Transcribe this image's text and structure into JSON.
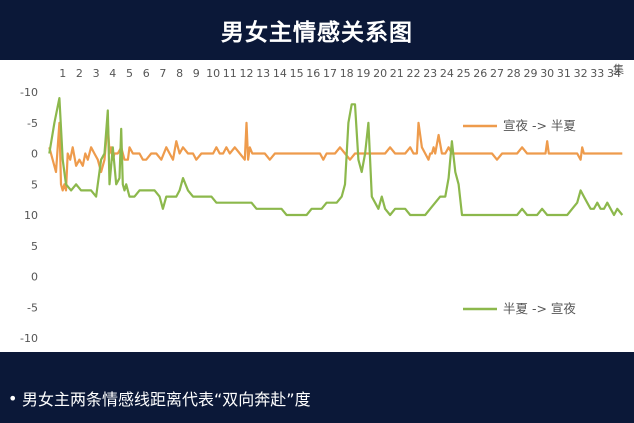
{
  "title": "男女主情感关系图",
  "footer": {
    "bullet": "•",
    "text": "男女主两条情感线距离代表“双向奔赴”度"
  },
  "colors": {
    "background": "#0b1838",
    "panel": "#ffffff",
    "orange": "#ee9b4c",
    "green": "#8cb84c",
    "grid": "#d9d9d9"
  },
  "chart_data": {
    "type": "line",
    "x_unit_label": "集",
    "x_ticks": [
      "1",
      "2",
      "3",
      "4",
      "5",
      "6",
      "7",
      "8",
      "9",
      "10",
      "11",
      "12",
      "13",
      "14",
      "15",
      "16",
      "17",
      "18",
      "19",
      "20",
      "21",
      "22",
      "23",
      "24",
      "25",
      "26",
      "27",
      "28",
      "29",
      "30",
      "31",
      "32",
      "33",
      "34"
    ],
    "y_ticks": [
      "-10",
      "-5",
      "0",
      "5",
      "10",
      "5",
      "0",
      "-5",
      "-10"
    ],
    "y_tick_values": [
      -20,
      -15,
      -10,
      -5,
      0,
      5,
      10,
      15,
      20
    ],
    "ylim": [
      -20,
      20
    ],
    "legend_placement": "inline-right",
    "grid": false,
    "series": [
      {
        "name": "宣夜 -> 半夏",
        "color": "#ee9b4c",
        "x": [
          0.2,
          0.6,
          0.8,
          0.9,
          1.0,
          1.1,
          1.2,
          1.3,
          1.45,
          1.6,
          1.8,
          2.0,
          2.2,
          2.35,
          2.5,
          2.7,
          2.9,
          3.1,
          3.3,
          3.5,
          3.6,
          3.7,
          3.8,
          3.9,
          4.0,
          4.1,
          4.3,
          4.5,
          4.7,
          4.9,
          5.0,
          5.2,
          5.4,
          5.6,
          5.8,
          6.0,
          6.3,
          6.6,
          6.9,
          7.2,
          7.4,
          7.6,
          7.8,
          8.0,
          8.2,
          8.5,
          8.8,
          9.0,
          9.3,
          9.6,
          9.8,
          10.0,
          10.2,
          10.4,
          10.6,
          10.8,
          11.0,
          11.3,
          11.6,
          11.9,
          12.0,
          12.1,
          12.2,
          12.35,
          12.5,
          12.8,
          13.1,
          13.4,
          13.7,
          14.0,
          14.3,
          14.6,
          14.9,
          15.2,
          15.5,
          15.8,
          16.0,
          16.2,
          16.4,
          16.6,
          16.8,
          17.0,
          17.3,
          17.6,
          17.9,
          18.2,
          18.5,
          18.8,
          19.1,
          19.4,
          19.7,
          20.0,
          20.3,
          20.6,
          20.9,
          21.2,
          21.5,
          21.8,
          22.0,
          22.1,
          22.2,
          22.3,
          22.5,
          22.7,
          22.9,
          23.0,
          23.1,
          23.2,
          23.3,
          23.5,
          23.7,
          23.9,
          24.1,
          24.3,
          24.5,
          24.7,
          24.9,
          25.2,
          25.5,
          25.8,
          26.1,
          26.4,
          26.7,
          27.0,
          27.3,
          27.6,
          27.9,
          28.2,
          28.5,
          28.8,
          29.1,
          29.4,
          29.6,
          29.8,
          29.9,
          30.0,
          30.1,
          30.2,
          30.5,
          30.8,
          31.1,
          31.4,
          31.6,
          31.8,
          32.0,
          32.1,
          32.2,
          32.3,
          32.5,
          32.7,
          32.9,
          33.1,
          33.3,
          33.5,
          33.7,
          33.9,
          34.1,
          34.3,
          34.5
        ],
        "y": [
          -11,
          -7,
          -15,
          -5,
          -4,
          -5,
          -4,
          -10,
          -9,
          -11,
          -8,
          -9,
          -8,
          -10,
          -9,
          -11,
          -10,
          -9,
          -7,
          -9,
          -12,
          -15,
          -10,
          -11,
          -9,
          -10,
          -10,
          -11,
          -9,
          -9,
          -11,
          -10,
          -10,
          -10,
          -9,
          -9,
          -10,
          -10,
          -9,
          -11,
          -10,
          -9,
          -12,
          -10,
          -11,
          -10,
          -10,
          -9,
          -10,
          -10,
          -10,
          -10,
          -11,
          -10,
          -10,
          -11,
          -10,
          -11,
          -10,
          -9,
          -15,
          -9,
          -11,
          -10,
          -10,
          -10,
          -10,
          -9,
          -10,
          -10,
          -10,
          -10,
          -10,
          -10,
          -10,
          -10,
          -10,
          -10,
          -10,
          -9,
          -10,
          -10,
          -10,
          -11,
          -10,
          -9,
          -10,
          -10,
          -10,
          -10,
          -10,
          -10,
          -10,
          -11,
          -10,
          -10,
          -10,
          -11,
          -10,
          -10,
          -10,
          -15,
          -11,
          -10,
          -9,
          -10,
          -10,
          -11,
          -10,
          -13,
          -10,
          -10,
          -11,
          -10,
          -10,
          -10,
          -10,
          -10,
          -10,
          -10,
          -10,
          -10,
          -10,
          -9,
          -10,
          -10,
          -10,
          -10,
          -11,
          -10,
          -10,
          -10,
          -10,
          -10,
          -10,
          -12,
          -10,
          -10,
          -10,
          -10,
          -10,
          -10,
          -10,
          -10,
          -9,
          -11,
          -10,
          -10,
          -10,
          -10,
          -10,
          -10,
          -10,
          -10,
          -10,
          -10,
          -10,
          -10,
          -10
        ]
      },
      {
        "name": "半夏 -> 宣夜",
        "color": "#8cb84c",
        "x": [
          0.2,
          0.5,
          0.8,
          1.0,
          1.2,
          1.5,
          1.8,
          2.1,
          2.4,
          2.7,
          3.0,
          3.3,
          3.5,
          3.7,
          3.8,
          4.0,
          4.2,
          4.4,
          4.5,
          4.6,
          4.7,
          4.8,
          5.0,
          5.3,
          5.6,
          5.9,
          6.2,
          6.5,
          6.8,
          7.0,
          7.2,
          7.5,
          7.8,
          8.0,
          8.2,
          8.5,
          8.8,
          9.0,
          9.3,
          9.6,
          9.9,
          10.2,
          10.5,
          10.8,
          11.1,
          11.4,
          11.7,
          12.0,
          12.3,
          12.6,
          12.9,
          13.2,
          13.5,
          13.8,
          14.1,
          14.4,
          14.7,
          15.0,
          15.3,
          15.6,
          15.9,
          16.2,
          16.5,
          16.8,
          17.1,
          17.4,
          17.7,
          17.9,
          18.1,
          18.3,
          18.5,
          18.7,
          18.9,
          19.1,
          19.3,
          19.5,
          19.7,
          19.9,
          20.1,
          20.3,
          20.6,
          20.9,
          21.2,
          21.5,
          21.8,
          22.1,
          22.4,
          22.7,
          23.0,
          23.3,
          23.6,
          23.9,
          24.1,
          24.3,
          24.5,
          24.7,
          24.9,
          25.2,
          25.5,
          25.8,
          26.1,
          26.4,
          26.7,
          27.0,
          27.3,
          27.6,
          27.9,
          28.2,
          28.5,
          28.8,
          29.1,
          29.4,
          29.7,
          30.0,
          30.3,
          30.6,
          30.9,
          31.2,
          31.5,
          31.8,
          32.0,
          32.2,
          32.4,
          32.6,
          32.8,
          33.0,
          33.2,
          33.4,
          33.6,
          33.8,
          34.0,
          34.2,
          34.5
        ],
        "y": [
          -10,
          -15,
          -19,
          -9,
          -5,
          -4,
          -5,
          -4,
          -4,
          -4,
          -3,
          -9,
          -10,
          -17,
          -5,
          -11,
          -5,
          -6,
          -14,
          -5,
          -4,
          -5,
          -3,
          -3,
          -4,
          -4,
          -4,
          -4,
          -3,
          -1,
          -3,
          -3,
          -3,
          -4,
          -6,
          -4,
          -3,
          -3,
          -3,
          -3,
          -3,
          -2,
          -2,
          -2,
          -2,
          -2,
          -2,
          -2,
          -2,
          -1,
          -1,
          -1,
          -1,
          -1,
          -1,
          0,
          0,
          0,
          0,
          0,
          -1,
          -1,
          -1,
          -2,
          -2,
          -2,
          -3,
          -5,
          -15,
          -18,
          -18,
          -9,
          -7,
          -10,
          -15,
          -3,
          -2,
          -1,
          -3,
          -1,
          0,
          -1,
          -1,
          -1,
          0,
          0,
          0,
          0,
          -1,
          -2,
          -3,
          -3,
          -6,
          -12,
          -7,
          -5,
          0,
          0,
          0,
          0,
          0,
          0,
          0,
          0,
          0,
          0,
          0,
          0,
          -1,
          0,
          0,
          0,
          -1,
          0,
          0,
          0,
          0,
          0,
          -1,
          -2,
          -4,
          -3,
          -2,
          -1,
          -1,
          -2,
          -1,
          -1,
          -2,
          -1,
          0,
          -1,
          0
        ]
      }
    ]
  }
}
